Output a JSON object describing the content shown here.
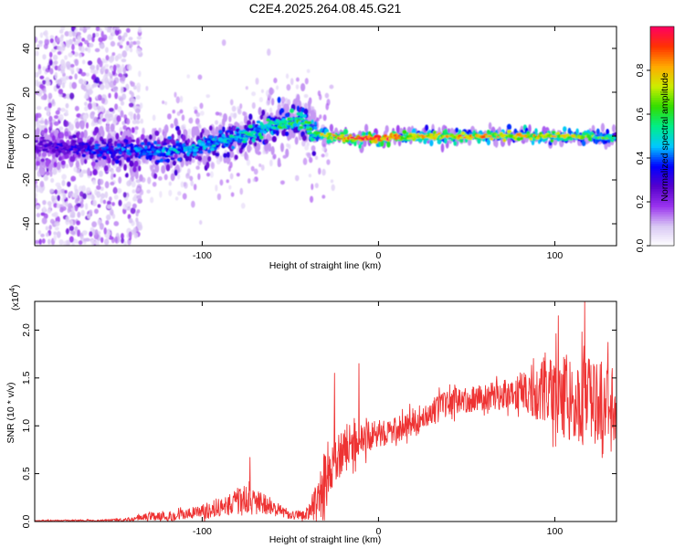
{
  "title": "C2E4.2025.264.08.45.G21",
  "colorbar": {
    "label": "Normalized spectral amplitude",
    "range": [
      0,
      1
    ],
    "ticks": [
      0.0,
      0.2,
      0.4,
      0.6,
      0.8
    ],
    "tick_labels": [
      "0.0",
      "0.2",
      "0.4",
      "0.6",
      "0.8"
    ],
    "stops": [
      "#ffffff",
      "#d9c8f4",
      "#9933ee",
      "#5500cc",
      "#0000ff",
      "#00c8ff",
      "#00ee88",
      "#33dd00",
      "#ccee00",
      "#ffaa00",
      "#ff3300",
      "#ff0060"
    ]
  },
  "chart_data": [
    {
      "type": "heatmap",
      "title": "C2E4.2025.264.08.45.G21",
      "xlabel": "Height of straight line (km)",
      "ylabel": "Frequency (Hz)",
      "xlim": [
        -195,
        135
      ],
      "ylim": [
        -50,
        50
      ],
      "xticks": [
        -100,
        0,
        100
      ],
      "xtick_labels": [
        "-100",
        "0",
        "100"
      ],
      "yticks": [
        -40,
        -20,
        0,
        20,
        40
      ],
      "ytick_labels": [
        "-40",
        "-20",
        "0",
        "20",
        "40"
      ],
      "ridge": {
        "description": "dominant frequency trace vs height",
        "x": [
          -195,
          -160,
          -130,
          -110,
          -90,
          -70,
          -55,
          -42,
          -38,
          -30,
          -20,
          0,
          20,
          60,
          100,
          135
        ],
        "y": [
          -5,
          -6,
          -7,
          -6,
          -3,
          2,
          6,
          7,
          2,
          0,
          -1,
          -1,
          0,
          0,
          0,
          -1
        ],
        "peak_amplitude": [
          0.25,
          0.35,
          0.4,
          0.45,
          0.45,
          0.5,
          0.55,
          0.55,
          0.55,
          0.7,
          0.9,
          0.95,
          0.75,
          0.75,
          0.75,
          0.55
        ]
      }
    },
    {
      "type": "line",
      "xlabel": "Height of straight line (km)",
      "ylabel": "SNR (10 * v/v)",
      "y_scale_label": "(x10",
      "y_scale_exp": "4",
      "y_scale_close": ")",
      "xlim": [
        -195,
        135
      ],
      "ylim": [
        0,
        2.3
      ],
      "xticks": [
        -100,
        0,
        100
      ],
      "xtick_labels": [
        "-100",
        "0",
        "100"
      ],
      "yticks": [
        0.0,
        0.5,
        1.0,
        1.5,
        2.0
      ],
      "ytick_labels": [
        "0.0",
        "0.5",
        "1.0",
        "1.5",
        "2.0"
      ],
      "series": [
        {
          "name": "SNR",
          "color": "#ee3333",
          "envelope_x": [
            -195,
            -160,
            -140,
            -130,
            -120,
            -100,
            -85,
            -75,
            -70,
            -60,
            -50,
            -40,
            -35,
            -30,
            -25,
            -20,
            -10,
            0,
            10,
            20,
            40,
            60,
            80,
            100,
            110,
            120,
            135
          ],
          "envelope_mean": [
            0.01,
            0.01,
            0.02,
            0.06,
            0.05,
            0.1,
            0.18,
            0.22,
            0.2,
            0.15,
            0.06,
            0.08,
            0.2,
            0.45,
            0.6,
            0.75,
            0.85,
            0.92,
            0.95,
            1.05,
            1.25,
            1.3,
            1.35,
            1.35,
            1.3,
            1.25,
            1.25
          ],
          "envelope_noise": [
            0.01,
            0.01,
            0.02,
            0.05,
            0.05,
            0.08,
            0.12,
            0.18,
            0.15,
            0.1,
            0.04,
            0.08,
            0.25,
            0.35,
            0.25,
            0.3,
            0.2,
            0.15,
            0.15,
            0.15,
            0.15,
            0.15,
            0.2,
            0.45,
            0.55,
            0.5,
            0.45
          ],
          "notable_peaks": [
            {
              "x": -73,
              "y": 0.67
            },
            {
              "x": -25,
              "y": 1.55
            },
            {
              "x": -11,
              "y": 1.65
            },
            {
              "x": 102,
              "y": 2.15
            },
            {
              "x": 117,
              "y": 2.3
            }
          ]
        }
      ]
    }
  ]
}
